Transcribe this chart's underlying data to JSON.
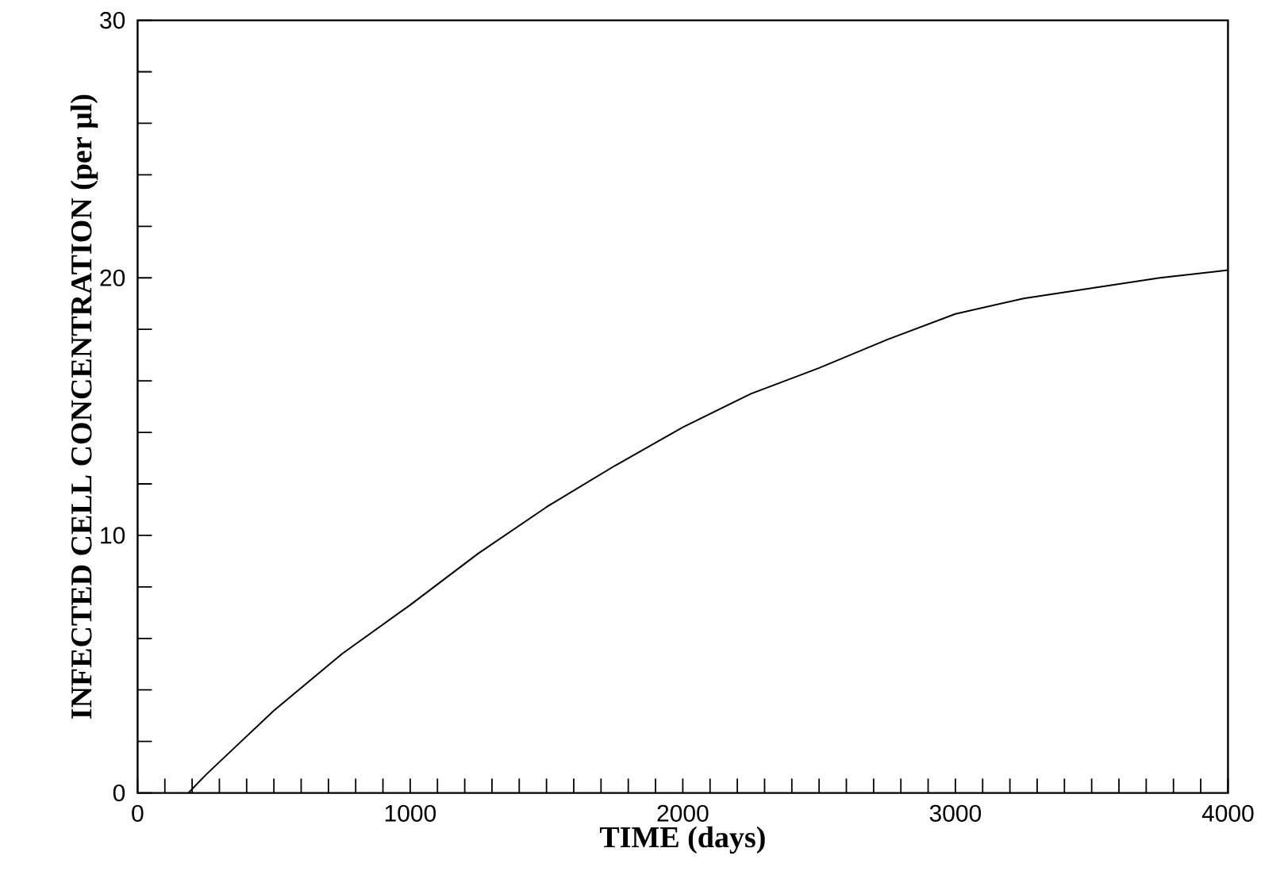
{
  "chart_data": {
    "type": "line",
    "xlabel": "TIME (days)",
    "ylabel": "INFECTED CELL CONCENTRATION (per μl)",
    "x": [
      186,
      250,
      350,
      500,
      750,
      1000,
      1250,
      1500,
      1750,
      2000,
      2250,
      2500,
      2750,
      3000,
      3250,
      3500,
      3750,
      4000
    ],
    "series": [
      {
        "color": "#000000",
        "values": [
          0,
          0.7,
          1.7,
          3.2,
          5.4,
          7.3,
          9.3,
          11.1,
          12.7,
          14.2,
          15.5,
          16.5,
          17.6,
          18.6,
          19.2,
          19.6,
          20.0,
          20.3
        ]
      }
    ],
    "xlim": [
      0,
      4000
    ],
    "ylim": [
      0,
      30
    ],
    "xticks": [
      0,
      1000,
      2000,
      3000,
      4000
    ],
    "yticks": [
      0,
      10,
      20,
      30
    ],
    "grid": false,
    "marker": "none",
    "line_style": "solid"
  }
}
